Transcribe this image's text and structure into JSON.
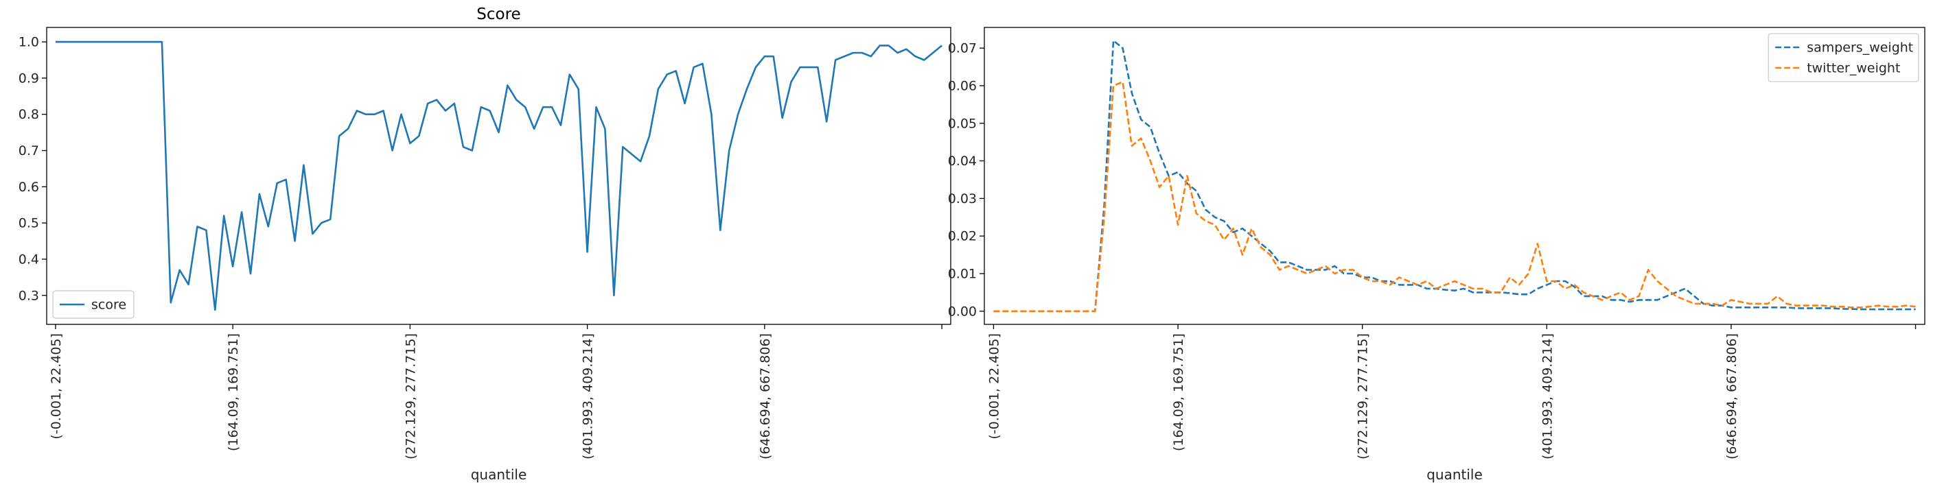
{
  "chart_data": [
    {
      "type": "line",
      "title": "Score",
      "xlabel": "quantile",
      "ylabel": "",
      "ylim": [
        0.22,
        1.04
      ],
      "yticks": [
        0.3,
        0.4,
        0.5,
        0.6,
        0.7,
        0.8,
        0.9,
        1.0
      ],
      "ytick_labels": [
        "0.3",
        "0.4",
        "0.5",
        "0.6",
        "0.7",
        "0.8",
        "0.9",
        "1.0"
      ],
      "xlim": [
        -5,
        505
      ],
      "xticks": [
        0,
        100,
        200,
        300,
        400,
        500
      ],
      "xtick_labels": [
        "(-0.001, 22.405]",
        "(164.09, 169.751]",
        "(272.129, 277.715]",
        "(401.993, 409.214]",
        "(646.694, 667.806]",
        ""
      ],
      "legend_position": "lower-left",
      "series": [
        {
          "name": "score",
          "color": "#1f77b4",
          "dash": "solid",
          "x": [
            0,
            5,
            10,
            15,
            20,
            25,
            30,
            35,
            40,
            45,
            50,
            55,
            60,
            65,
            70,
            75,
            80,
            85,
            90,
            95,
            100,
            105,
            110,
            115,
            120,
            125,
            130,
            135,
            140,
            145,
            150,
            155,
            160,
            165,
            170,
            175,
            180,
            185,
            190,
            195,
            200,
            205,
            210,
            215,
            220,
            225,
            230,
            235,
            240,
            245,
            250,
            255,
            260,
            265,
            270,
            275,
            280,
            285,
            290,
            295,
            300,
            305,
            310,
            315,
            320,
            325,
            330,
            335,
            340,
            345,
            350,
            355,
            360,
            365,
            370,
            375,
            380,
            385,
            390,
            395,
            400,
            405,
            410,
            415,
            420,
            425,
            430,
            435,
            440,
            445,
            450,
            455,
            460,
            465,
            470,
            475,
            480,
            485,
            490,
            495,
            500
          ],
          "y": [
            1.0,
            1.0,
            1.0,
            1.0,
            1.0,
            1.0,
            1.0,
            1.0,
            1.0,
            1.0,
            1.0,
            1.0,
            1.0,
            0.28,
            0.37,
            0.33,
            0.49,
            0.48,
            0.26,
            0.52,
            0.38,
            0.53,
            0.36,
            0.58,
            0.49,
            0.61,
            0.62,
            0.45,
            0.66,
            0.47,
            0.5,
            0.51,
            0.74,
            0.76,
            0.81,
            0.8,
            0.8,
            0.81,
            0.7,
            0.8,
            0.72,
            0.74,
            0.83,
            0.84,
            0.81,
            0.83,
            0.71,
            0.7,
            0.82,
            0.81,
            0.75,
            0.88,
            0.84,
            0.82,
            0.76,
            0.82,
            0.82,
            0.77,
            0.91,
            0.87,
            0.42,
            0.82,
            0.76,
            0.3,
            0.71,
            0.69,
            0.67,
            0.74,
            0.87,
            0.91,
            0.92,
            0.83,
            0.93,
            0.94,
            0.8,
            0.48,
            0.7,
            0.8,
            0.87,
            0.93,
            0.96,
            0.96,
            0.79,
            0.89,
            0.93,
            0.93,
            0.93,
            0.78,
            0.95,
            0.96,
            0.97,
            0.97,
            0.96,
            0.99,
            0.99,
            0.97,
            0.98,
            0.96,
            0.95,
            0.97,
            0.99
          ]
        }
      ]
    },
    {
      "type": "line",
      "title": "",
      "xlabel": "quantile",
      "ylabel": "",
      "ylim": [
        -0.0035,
        0.0755
      ],
      "yticks": [
        0.0,
        0.01,
        0.02,
        0.03,
        0.04,
        0.05,
        0.06,
        0.07
      ],
      "ytick_labels": [
        "0.00",
        "0.01",
        "0.02",
        "0.03",
        "0.04",
        "0.05",
        "0.06",
        "0.07"
      ],
      "xlim": [
        -5,
        505
      ],
      "xticks": [
        0,
        100,
        200,
        300,
        400,
        500
      ],
      "xtick_labels": [
        "(-0.001, 22.405]",
        "(164.09, 169.751]",
        "(272.129, 277.715]",
        "(401.993, 409.214]",
        "(646.694, 667.806]",
        ""
      ],
      "legend_position": "upper-right",
      "series": [
        {
          "name": "sampers_weight",
          "color": "#1f77b4",
          "dash": "dashed",
          "x": [
            0,
            5,
            10,
            15,
            20,
            25,
            30,
            35,
            40,
            45,
            50,
            55,
            60,
            65,
            70,
            75,
            80,
            85,
            90,
            95,
            100,
            105,
            110,
            115,
            120,
            125,
            130,
            135,
            140,
            145,
            150,
            155,
            160,
            165,
            170,
            175,
            180,
            185,
            190,
            195,
            200,
            205,
            210,
            215,
            220,
            225,
            230,
            235,
            240,
            245,
            250,
            255,
            260,
            265,
            270,
            275,
            280,
            285,
            290,
            295,
            300,
            305,
            310,
            315,
            320,
            325,
            330,
            335,
            340,
            345,
            350,
            355,
            360,
            365,
            370,
            375,
            380,
            385,
            390,
            395,
            400,
            405,
            410,
            415,
            420,
            425,
            430,
            435,
            440,
            445,
            450,
            455,
            460,
            465,
            470,
            475,
            480,
            485,
            490,
            495,
            500
          ],
          "y": [
            0,
            0,
            0,
            0,
            0,
            0,
            0,
            0,
            0,
            0,
            0,
            0,
            0.028,
            0.072,
            0.07,
            0.058,
            0.051,
            0.049,
            0.042,
            0.036,
            0.037,
            0.034,
            0.032,
            0.027,
            0.025,
            0.024,
            0.021,
            0.022,
            0.02,
            0.018,
            0.016,
            0.013,
            0.013,
            0.012,
            0.011,
            0.011,
            0.011,
            0.012,
            0.01,
            0.01,
            0.009,
            0.009,
            0.008,
            0.008,
            0.007,
            0.007,
            0.007,
            0.006,
            0.006,
            0.0057,
            0.0055,
            0.006,
            0.005,
            0.005,
            0.005,
            0.005,
            0.0048,
            0.0045,
            0.0045,
            0.006,
            0.007,
            0.008,
            0.008,
            0.0065,
            0.004,
            0.004,
            0.004,
            0.003,
            0.003,
            0.0025,
            0.003,
            0.003,
            0.003,
            0.004,
            0.005,
            0.006,
            0.004,
            0.002,
            0.0015,
            0.0015,
            0.001,
            0.001,
            0.001,
            0.001,
            0.001,
            0.001,
            0.001,
            0.0008,
            0.0008,
            0.0008,
            0.0008,
            0.0008,
            0.0006,
            0.0006,
            0.0005,
            0.0005,
            0.0005,
            0.0005,
            0.0005,
            0.0005,
            0.0005
          ]
        },
        {
          "name": "twitter_weight",
          "color": "#ff7f0e",
          "dash": "dashed",
          "x": [
            0,
            5,
            10,
            15,
            20,
            25,
            30,
            35,
            40,
            45,
            50,
            55,
            60,
            65,
            70,
            75,
            80,
            85,
            90,
            95,
            100,
            105,
            110,
            115,
            120,
            125,
            130,
            135,
            140,
            145,
            150,
            155,
            160,
            165,
            170,
            175,
            180,
            185,
            190,
            195,
            200,
            205,
            210,
            215,
            220,
            225,
            230,
            235,
            240,
            245,
            250,
            255,
            260,
            265,
            270,
            275,
            280,
            285,
            290,
            295,
            300,
            305,
            310,
            315,
            320,
            325,
            330,
            335,
            340,
            345,
            350,
            355,
            360,
            365,
            370,
            375,
            380,
            385,
            390,
            395,
            400,
            405,
            410,
            415,
            420,
            425,
            430,
            435,
            440,
            445,
            450,
            455,
            460,
            465,
            470,
            475,
            480,
            485,
            490,
            495,
            500
          ],
          "y": [
            0,
            0,
            0,
            0,
            0,
            0,
            0,
            0,
            0,
            0,
            0,
            0,
            0.025,
            0.06,
            0.061,
            0.044,
            0.046,
            0.04,
            0.033,
            0.036,
            0.023,
            0.036,
            0.026,
            0.024,
            0.023,
            0.019,
            0.022,
            0.015,
            0.022,
            0.017,
            0.015,
            0.011,
            0.012,
            0.011,
            0.01,
            0.011,
            0.012,
            0.01,
            0.011,
            0.011,
            0.009,
            0.008,
            0.008,
            0.007,
            0.009,
            0.008,
            0.007,
            0.008,
            0.006,
            0.007,
            0.008,
            0.007,
            0.006,
            0.006,
            0.005,
            0.005,
            0.009,
            0.007,
            0.01,
            0.018,
            0.008,
            0.008,
            0.006,
            0.007,
            0.005,
            0.004,
            0.003,
            0.004,
            0.005,
            0.003,
            0.004,
            0.011,
            0.008,
            0.006,
            0.004,
            0.003,
            0.002,
            0.002,
            0.002,
            0.0015,
            0.003,
            0.0025,
            0.002,
            0.002,
            0.002,
            0.004,
            0.002,
            0.0015,
            0.0015,
            0.0015,
            0.0015,
            0.0012,
            0.0012,
            0.001,
            0.001,
            0.0012,
            0.0015,
            0.0012,
            0.0012,
            0.0015,
            0.0012
          ]
        }
      ]
    }
  ]
}
